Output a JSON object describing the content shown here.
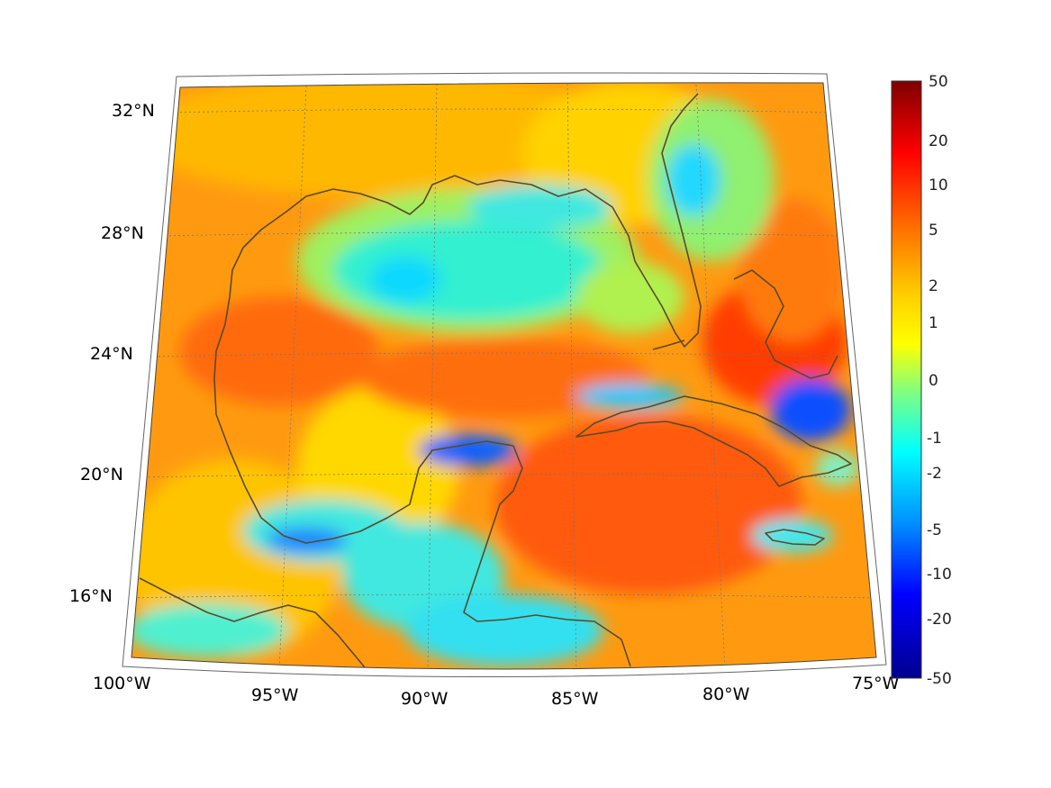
{
  "map": {
    "region": "Gulf of Mexico and western Caribbean",
    "projection": "conic",
    "lon_range": [
      -100,
      -75
    ],
    "lat_range": [
      14,
      33
    ],
    "grid": true,
    "coastline_color": "#5a4a2a",
    "latitude_labels": [
      "32°N",
      "28°N",
      "24°N",
      "20°N",
      "16°N"
    ],
    "longitude_labels": [
      "100°W",
      "95°W",
      "90°W",
      "85°W",
      "80°W",
      "75°W"
    ]
  },
  "colorbar": {
    "colormap": "jet",
    "tick_labels": [
      "50",
      "20",
      "10",
      "5",
      "2",
      "1",
      "0",
      "-1",
      "-2",
      "-5",
      "-10",
      "-20",
      "-50"
    ],
    "colors": [
      "#7f0000",
      "#ff0000",
      "#ff7f00",
      "#ffff00",
      "#80ff80",
      "#00ffff",
      "#0080ff",
      "#0000ff",
      "#00008f"
    ]
  }
}
